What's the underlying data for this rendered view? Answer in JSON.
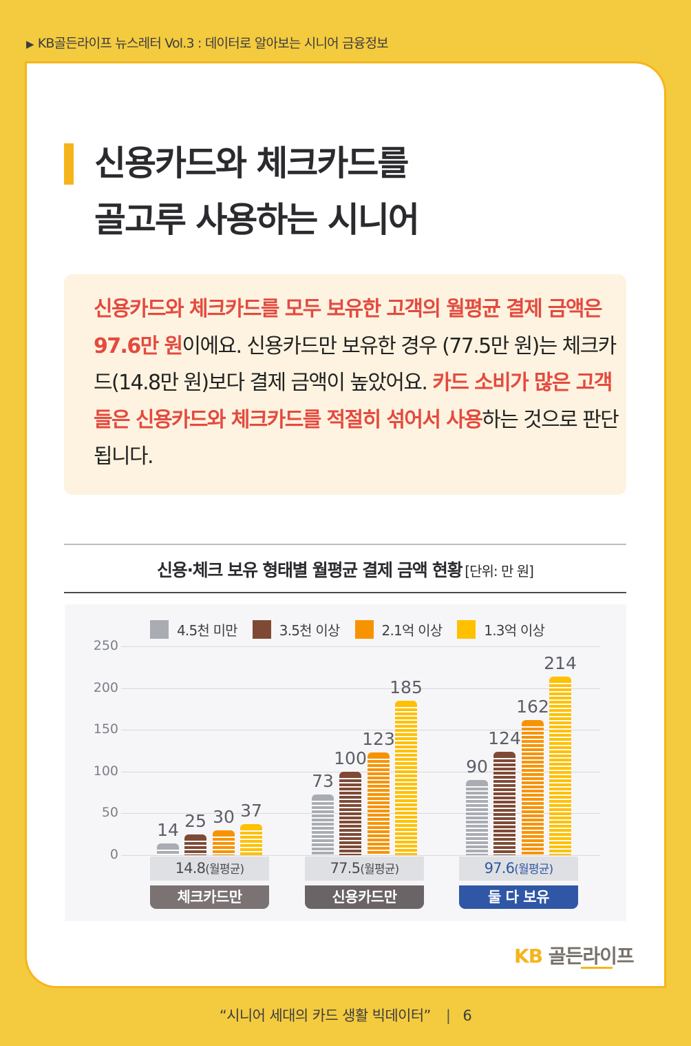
{
  "header": {
    "marker_icon": "triangle-right",
    "text": "KB골든라이프 뉴스레터 Vol.3 : 데이터로 알아보는 시니어 금융정보"
  },
  "title": {
    "line1": "신용카드와 체크카드를",
    "line2": "골고루 사용하는 시니어"
  },
  "summary": {
    "segments": [
      {
        "text": "신용카드와 체크카드를 모두 보유한 고객의 월평균 결제 금액은 97.6만 원",
        "highlight": true
      },
      {
        "text": "이에요. 신용카드만 보유한 경우 (77.5만 원)는 체크카드(14.8만 원)보다 결제 금액이 높았어요. ",
        "highlight": false
      },
      {
        "text": "카드 소비가 많은 고객들은 신용카드와 체크카드를 적절히 섞어서 사용",
        "highlight": true
      },
      {
        "text": "하는 것으로 판단됩니다.",
        "highlight": false
      }
    ],
    "highlight_color": "#e44a3f"
  },
  "chart_title": {
    "main": "신용·체크 보유 형태별 월평균 결제 금액 현황",
    "unit": "[단위: 만 원]"
  },
  "chart_data": {
    "type": "bar",
    "title": "신용·체크 보유 형태별 월평균 결제 금액 현황",
    "unit": "만 원",
    "categories": [
      "체크카드만",
      "신용카드만",
      "둘 다 보유"
    ],
    "category_averages": [
      "14.8",
      "77.5",
      "97.6"
    ],
    "average_suffix": "(월평균)",
    "series": [
      {
        "name": "4.5천 미만",
        "color": "#a9acb3",
        "values": [
          14,
          73,
          90
        ]
      },
      {
        "name": "3.5천 이상",
        "color": "#7f4a35",
        "values": [
          25,
          100,
          124
        ]
      },
      {
        "name": "2.1억 이상",
        "color": "#f79300",
        "values": [
          30,
          123,
          162
        ]
      },
      {
        "name": "1.3억 이상",
        "color": "#ffc000",
        "values": [
          37,
          185,
          214
        ]
      }
    ],
    "yticks": [
      0,
      50,
      100,
      150,
      200,
      250
    ],
    "ylim": [
      0,
      250
    ],
    "grid": true,
    "legend_position": "top",
    "category_colors": [
      "#7a7273",
      "#6a6466",
      "#2f57a5"
    ],
    "average_colors": [
      "#4a4b52",
      "#4a4b52",
      "#2f57a5"
    ]
  },
  "logo": {
    "kb": "KB",
    "name": "골든라이프"
  },
  "footer": {
    "title": "“시니어 세대의 카드 생활 빅데이터”",
    "separator": "|",
    "page": "6"
  }
}
